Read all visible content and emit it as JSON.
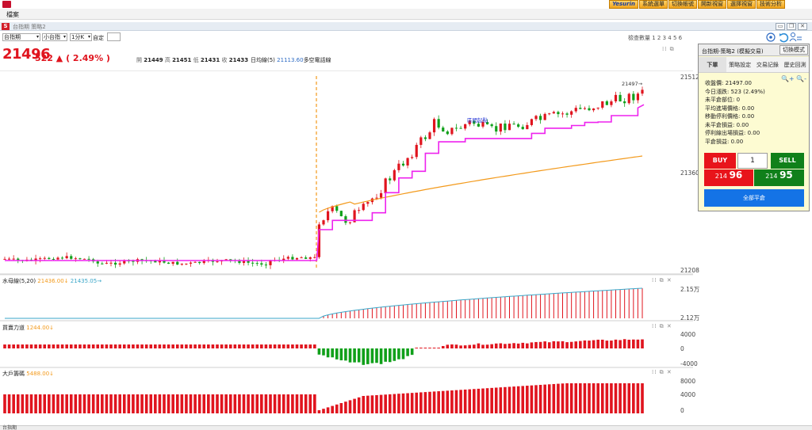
{
  "top_bar": {
    "buttons": [
      "Yesurin",
      "系統選單",
      "切換帳號",
      "開新視窗",
      "選擇視窗",
      "技術分析"
    ]
  },
  "menu": {
    "file": "檔案"
  },
  "window": {
    "icon_letter": "S",
    "title": "台指期 策略2"
  },
  "toolbar": {
    "symbol": "台指期",
    "contract": "小台指",
    "period": "1分K",
    "custom_label": "自定",
    "view_count": "檢查數量 1 2 3 4 5 6"
  },
  "quote": {
    "last_price": "21496",
    "change": "522 ▲ ( 2.49% )",
    "open_label": "開",
    "open": "21449",
    "high_label": "高",
    "high": "21451",
    "low_label": "低",
    "low": "21431",
    "close_label": "收",
    "close": "21433",
    "ma_label": "日均線(5)",
    "ma_value": "21113.60",
    "ma_suffix": "多空電話線"
  },
  "main_chart": {
    "y_labels": [
      "21512",
      "21360",
      "21208"
    ],
    "last_marker": "21497→",
    "annotation": "區間起點"
  },
  "sub1": {
    "title": "水母線(5,20)",
    "v1": "21436.00↓",
    "v2": "21435.05→",
    "y_labels": [
      "2.15万",
      "2.12万"
    ]
  },
  "sub2": {
    "title": "買賣力道",
    "v1": "1244.00↓",
    "y_labels": [
      "4000",
      "0",
      "-4000"
    ]
  },
  "sub3": {
    "title": "大戶籌碼",
    "v1": "5488.00↓",
    "y_labels": [
      "8000",
      "4000",
      "0"
    ]
  },
  "panel": {
    "title": "台指期-策略2 (模擬交易)",
    "mode_button": "切換模式",
    "tabs": [
      "下單",
      "策略設定",
      "交易記錄",
      "歷史回測"
    ],
    "active_tab": 0,
    "zoom_icons": "🔍+ 🔍-",
    "info": [
      "收盤價: 21497.00",
      "今日漲跌: 523 (2.49%)",
      "未平倉部位: 0",
      "平均進場價格: 0.00",
      "移動停利價格: 0.00",
      "未平倉損益: 0.00",
      "停利線出場損益: 0.00",
      "平倉損益: 0.00"
    ],
    "buy_label": "BUY",
    "qty": "1",
    "sell_label": "SELL",
    "buy_price_small": "214",
    "buy_price_big": "96",
    "sell_price_small": "214",
    "sell_price_big": "95",
    "close_all": "全部平倉"
  },
  "colors": {
    "up": "#e0141e",
    "down": "#10a01a",
    "magenta": "#ee22ee",
    "orange": "#f39a1c",
    "accent": "#1473e6"
  },
  "bottom_tab": "台指期"
}
